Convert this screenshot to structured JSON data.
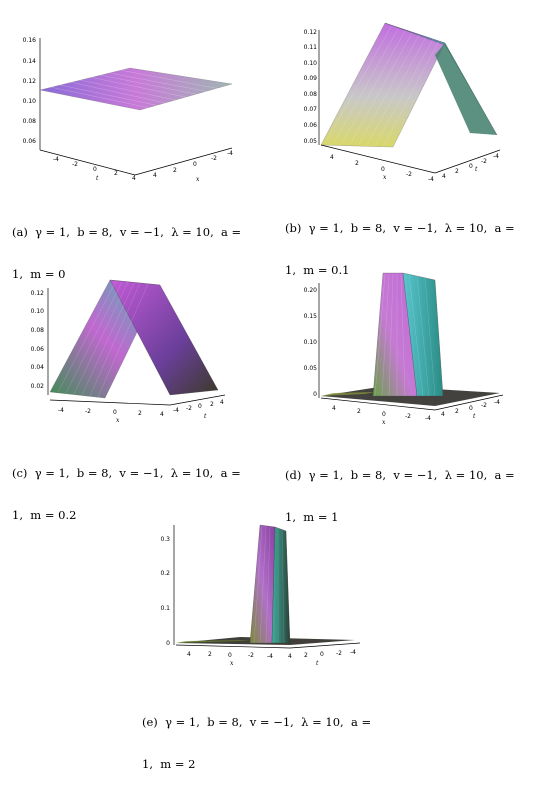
{
  "figures": [
    {
      "id": "a",
      "caption_line1": "(a)  γ = 1,  b = 8,  v = −1,  λ = 10,  a =",
      "caption_line2": "1,  m = 0",
      "z_ticks": [
        "0.16",
        "0.14",
        "0.12",
        "0.10",
        "0.08",
        "0.06"
      ],
      "x_ticks": [
        "-4",
        "-2",
        "0",
        "2",
        "4"
      ],
      "y_ticks": [
        "4",
        "2",
        "0",
        "-2",
        "-4"
      ],
      "x_label": "t",
      "y_label": "x"
    },
    {
      "id": "b",
      "caption_line1": "(b)  γ = 1,  b = 8,  v = −1,  λ = 10,  a =",
      "caption_line2": "1,  m = 0.1",
      "z_ticks": [
        "0.12",
        "0.11",
        "0.10",
        "0.09",
        "0.08",
        "0.07",
        "0.06",
        "0.05"
      ],
      "x_ticks": [
        "4",
        "2",
        "0",
        "-2",
        "-4"
      ],
      "y_ticks": [
        "4",
        "2",
        "0",
        "-2",
        "-4"
      ],
      "x_label": "x",
      "y_label": "t"
    },
    {
      "id": "c",
      "caption_line1": "(c)  γ = 1,  b = 8,  v = −1,  λ = 10,  a =",
      "caption_line2": "1,  m = 0.2",
      "z_ticks": [
        "0.12",
        "0.10",
        "0.08",
        "0.06",
        "0.04",
        "0.02"
      ],
      "x_ticks": [
        "-4",
        "-2",
        "0",
        "2",
        "4"
      ],
      "y_ticks": [
        "-4",
        "-2",
        "0",
        "2",
        "4"
      ],
      "x_label": "x",
      "y_label": "t"
    },
    {
      "id": "d",
      "caption_line1": "(d)  γ = 1,  b = 8,  v = −1,  λ = 10,  a =",
      "caption_line2": "1,  m = 1",
      "z_ticks": [
        "0.20",
        "0.15",
        "0.10",
        "0.05",
        "0"
      ],
      "x_ticks": [
        "4",
        "2",
        "0",
        "-2",
        "-4"
      ],
      "y_ticks": [
        "4",
        "2",
        "0",
        "-2",
        "-4"
      ],
      "x_label": "x",
      "y_label": "t"
    },
    {
      "id": "e",
      "caption_line1": "(e)  γ = 1,  b = 8,  v = −1,  λ = 10,  a =",
      "caption_line2": "1,  m = 2",
      "z_ticks": [
        "0.3",
        "0.2",
        "0.1",
        "0"
      ],
      "x_ticks": [
        "4",
        "2",
        "0",
        "-2",
        "-4"
      ],
      "y_ticks": [
        "4",
        "2",
        "0",
        "-2",
        "-4"
      ],
      "x_label": "x",
      "y_label": "t"
    }
  ]
}
